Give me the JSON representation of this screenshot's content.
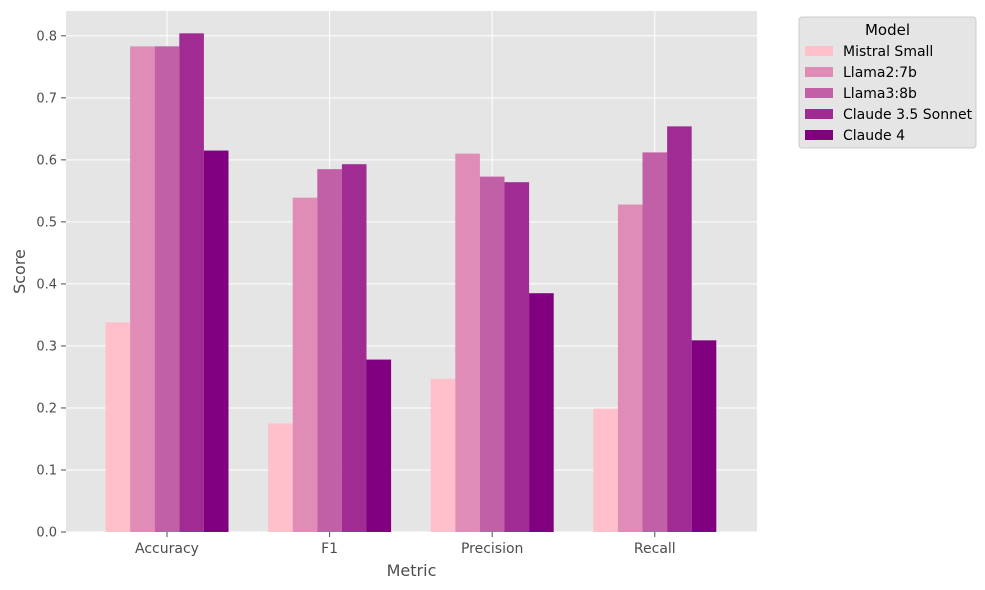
{
  "chart_data": {
    "type": "bar",
    "title": "",
    "xlabel": "Metric",
    "ylabel": "Score",
    "ylim": [
      0,
      0.84
    ],
    "yticks": [
      "0.0",
      "0.1",
      "0.2",
      "0.3",
      "0.4",
      "0.5",
      "0.6",
      "0.7",
      "0.8"
    ],
    "categories": [
      "Accuracy",
      "F1",
      "Precision",
      "Recall"
    ],
    "grid": true,
    "legend": {
      "title": "Model",
      "placement": "outside-top-right"
    },
    "series": [
      {
        "name": "Mistral Small",
        "color": "#ffc0cb",
        "values": [
          0.338,
          0.175,
          0.247,
          0.199
        ]
      },
      {
        "name": "Llama2:7b",
        "color": "#df8db6",
        "values": [
          0.783,
          0.539,
          0.61,
          0.528
        ]
      },
      {
        "name": "Llama3:8b",
        "color": "#c160a6",
        "values": [
          0.783,
          0.585,
          0.573,
          0.612
        ]
      },
      {
        "name": "Claude 3.5 Sonnet",
        "color": "#a02b93",
        "values": [
          0.804,
          0.593,
          0.564,
          0.654
        ]
      },
      {
        "name": "Claude 4",
        "color": "#800080",
        "values": [
          0.615,
          0.278,
          0.385,
          0.309
        ]
      }
    ]
  },
  "colors": {
    "plot_background": "#e5e5e5",
    "grid": "#ffffff",
    "text": "#4d4d4d"
  }
}
